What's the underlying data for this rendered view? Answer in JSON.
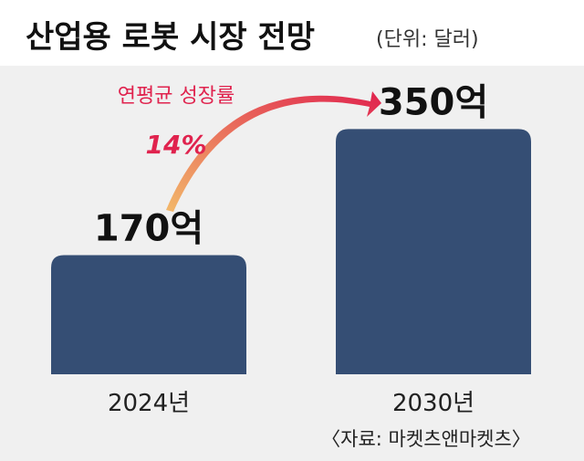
{
  "title": "산업용 로봇 시장 전망",
  "unit_note": "(단위: 달러)",
  "source": "〈자료: 마켓츠앤마켓츠〉",
  "annotation": {
    "label": "연평균 성장률",
    "value": "14%"
  },
  "colors": {
    "bar": "#354e74",
    "annotation": "#e0234e",
    "arrow_start": "#f2b86a",
    "arrow_end": "#e0234e",
    "background_panel": "#f0f0f0"
  },
  "chart_data": {
    "type": "bar",
    "title": "산업용 로봇 시장 전망",
    "categories": [
      "2024년",
      "2030년"
    ],
    "values": [
      170,
      350
    ],
    "value_labels": [
      "170억",
      "350억"
    ],
    "ylim": [
      0,
      400
    ],
    "grid": false,
    "xlabel": "",
    "ylabel": ""
  }
}
